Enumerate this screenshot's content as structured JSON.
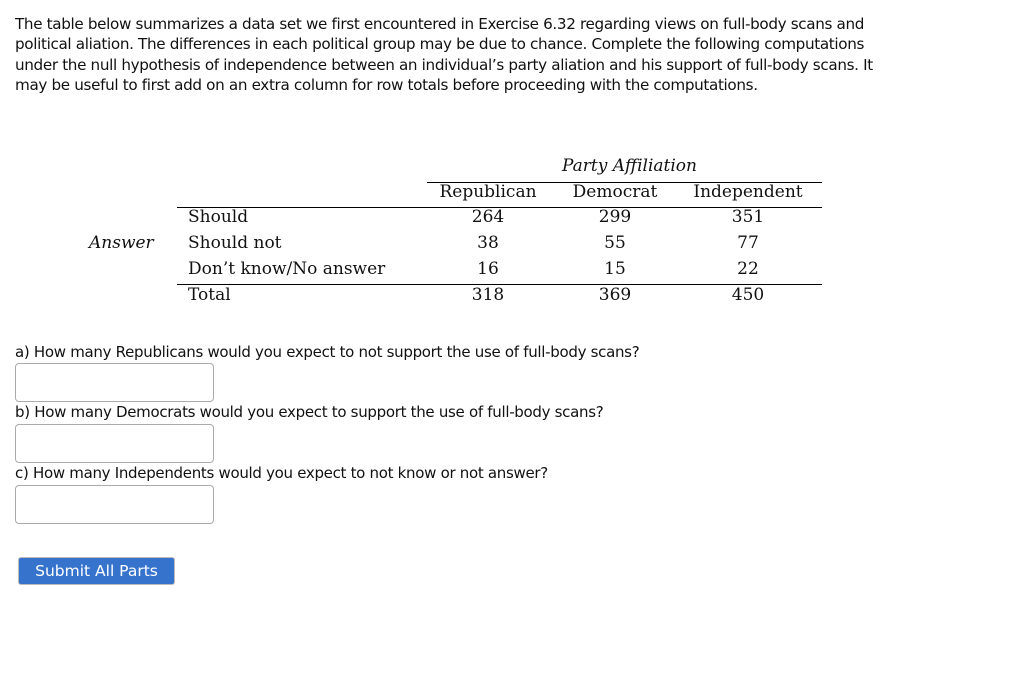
{
  "intro": "The table below summarizes a data set we first encountered in Exercise 6.32 regarding views on full-body scans and political aliation. The differences in each political group may be due to chance. Complete the following computations under the null hypothesis of independence between an individual’s party aliation and his support of full-body scans. It may be useful to first add on an extra column for row totals before proceeding with the computations.",
  "table": {
    "column_group": "Party Affiliation",
    "row_group": "Answer",
    "columns": [
      "Republican",
      "Democrat",
      "Independent"
    ],
    "rows": [
      {
        "label": "Should",
        "values": [
          "264",
          "299",
          "351"
        ]
      },
      {
        "label": "Should not",
        "values": [
          "38",
          "55",
          "77"
        ]
      },
      {
        "label": "Don’t know/No answer",
        "values": [
          "16",
          "15",
          "22"
        ]
      },
      {
        "label": "Total",
        "values": [
          "318",
          "369",
          "450"
        ]
      }
    ]
  },
  "questions": [
    {
      "text": "a) How many Republicans would you expect to not support the use of full-body scans?",
      "value": ""
    },
    {
      "text": "b) How many Democrats would you expect to support the use of full-body scans?",
      "value": ""
    },
    {
      "text": "c) How many Independents would you expect to not know or not answer?",
      "value": ""
    }
  ],
  "submit_label": "Submit All Parts",
  "colors": {
    "button": "#3673cc"
  }
}
